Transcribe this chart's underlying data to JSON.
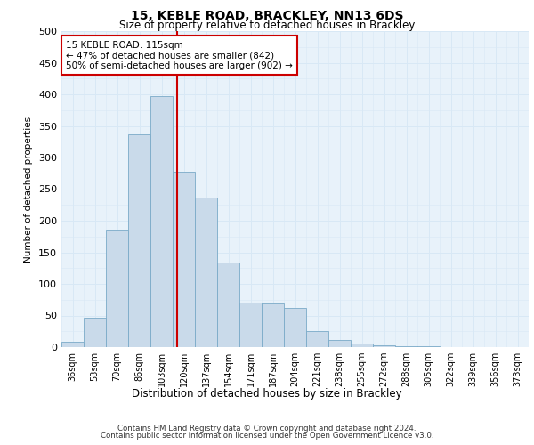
{
  "title_line1": "15, KEBLE ROAD, BRACKLEY, NN13 6DS",
  "title_line2": "Size of property relative to detached houses in Brackley",
  "xlabel": "Distribution of detached houses by size in Brackley",
  "ylabel": "Number of detached properties",
  "bar_values": [
    8,
    46,
    186,
    336,
    397,
    277,
    237,
    134,
    70,
    69,
    62,
    26,
    11,
    5,
    3,
    1,
    1,
    0,
    0,
    0,
    0
  ],
  "bar_labels": [
    "36sqm",
    "53sqm",
    "70sqm",
    "86sqm",
    "103sqm",
    "120sqm",
    "137sqm",
    "154sqm",
    "171sqm",
    "187sqm",
    "204sqm",
    "221sqm",
    "238sqm",
    "255sqm",
    "272sqm",
    "288sqm",
    "305sqm",
    "322sqm",
    "339sqm",
    "356sqm",
    "373sqm"
  ],
  "bar_color": "#c9daea",
  "bar_edge_color": "#7aaac8",
  "grid_color": "#d8e8f5",
  "background_color": "#e8f2fa",
  "vline_color": "#cc0000",
  "annotation_text": "15 KEBLE ROAD: 115sqm\n← 47% of detached houses are smaller (842)\n50% of semi-detached houses are larger (902) →",
  "annotation_box_color": "#ffffff",
  "annotation_box_edge_color": "#cc0000",
  "ylim": [
    0,
    500
  ],
  "yticks": [
    0,
    50,
    100,
    150,
    200,
    250,
    300,
    350,
    400,
    450,
    500
  ],
  "footer_line1": "Contains HM Land Registry data © Crown copyright and database right 2024.",
  "footer_line2": "Contains public sector information licensed under the Open Government Licence v3.0."
}
